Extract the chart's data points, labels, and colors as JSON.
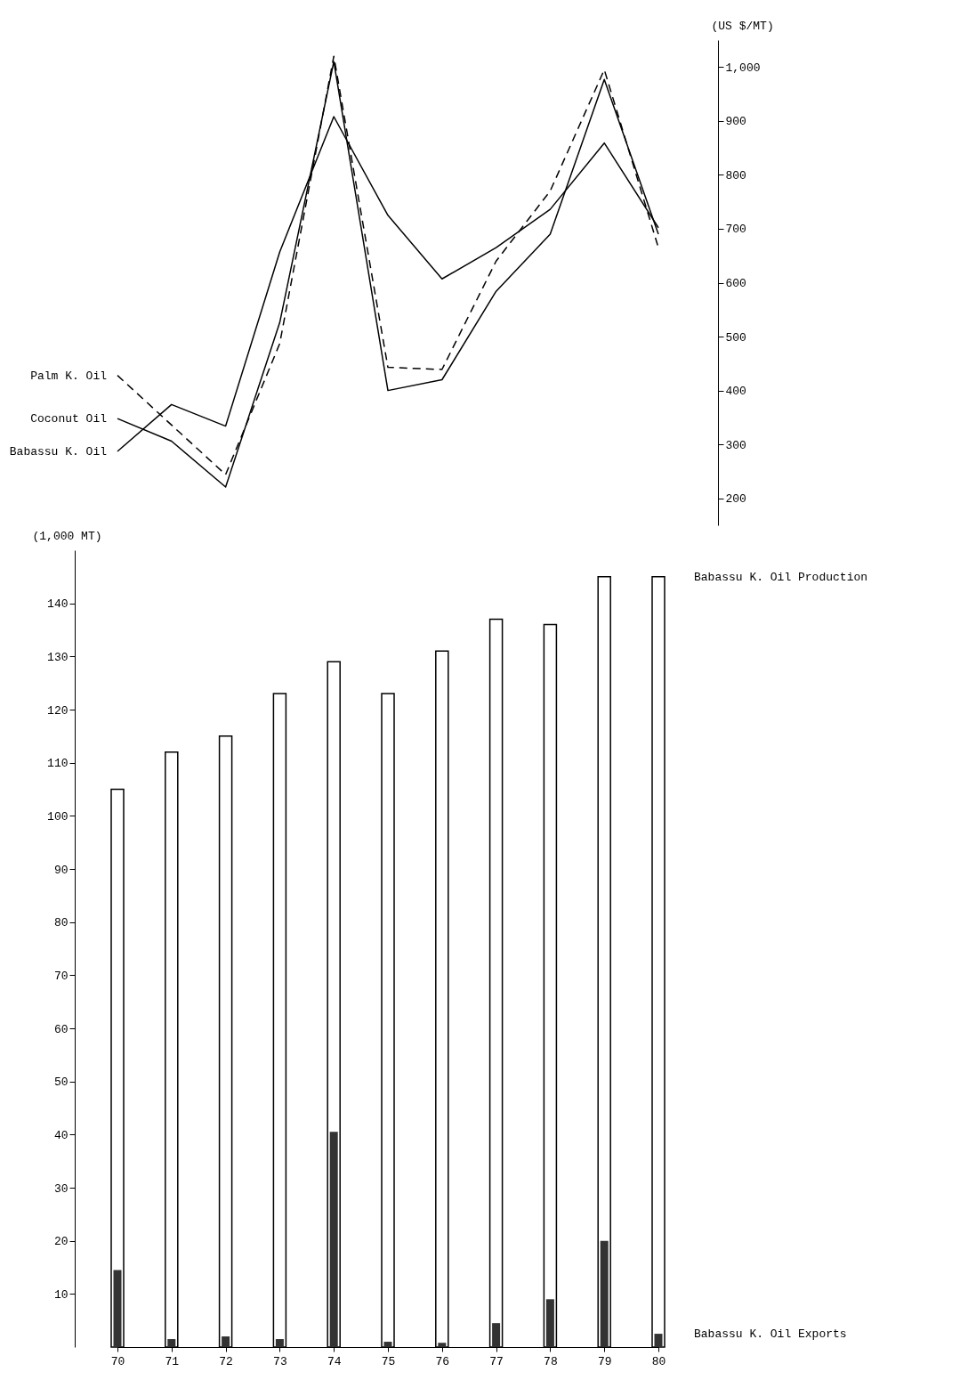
{
  "chart_data": [
    {
      "type": "line",
      "categories": [
        null,
        null,
        null,
        null,
        null,
        null,
        null,
        null,
        null,
        null,
        null
      ],
      "series": [
        {
          "name": "Palm K. Oil",
          "color": "#000000",
          "line_style": "dashed",
          "values": [
            428,
            336,
            244,
            487,
            1020,
            443,
            439,
            640,
            770,
            995,
            665
          ]
        },
        {
          "name": "Coconut Oil",
          "color": "#000000",
          "line_style": "solid",
          "values": [
            348,
            306,
            221,
            526,
            1010,
            400,
            420,
            584,
            690,
            977,
            690
          ]
        },
        {
          "name": "Babassu K. Oil",
          "color": "#000000",
          "line_style": "solid",
          "values": [
            287,
            374,
            334,
            657,
            908,
            725,
            607,
            665,
            736,
            859,
            702
          ]
        }
      ],
      "ylabel": "(US $/MT)",
      "ylim": [
        150,
        1050
      ],
      "yticks": [
        200,
        300,
        400,
        500,
        600,
        700,
        800,
        900,
        {
          "value": 1000,
          "label": "1,000"
        }
      ],
      "legend": false,
      "grid": false
    },
    {
      "type": "bar",
      "categories": [
        "70",
        "71",
        "72",
        "73",
        "74",
        "75",
        "76",
        "77",
        "78",
        "79",
        "80"
      ],
      "series": [
        {
          "name": "Babassu K. Oil Production",
          "color": "#ffffff",
          "values": [
            105,
            112,
            115,
            123,
            129,
            123,
            131,
            137,
            136,
            145,
            145
          ]
        },
        {
          "name": "Babassu K. Oil Exports",
          "color": "#333333",
          "values": [
            14.5,
            1.5,
            2,
            1.5,
            40.5,
            1,
            0.8,
            4.5,
            9,
            20,
            2.5
          ]
        }
      ],
      "ylabel": "(1,000 MT)",
      "ylim": [
        0,
        150
      ],
      "yticks": [
        10,
        20,
        30,
        40,
        50,
        60,
        70,
        80,
        90,
        100,
        110,
        120,
        130,
        140
      ],
      "legend": false,
      "grid": false
    }
  ]
}
